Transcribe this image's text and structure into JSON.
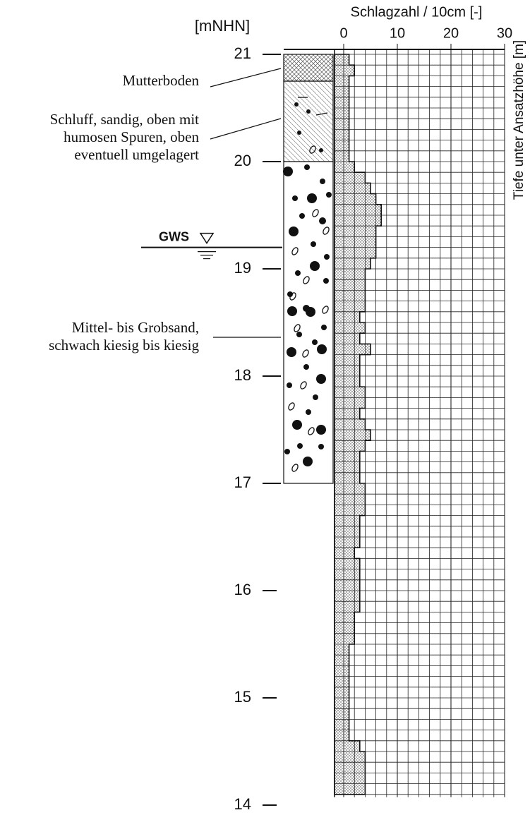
{
  "chart_data": {
    "type": "step-histogram",
    "y_axis_label": "[mNHN]",
    "x_axis_label": "Schlagzahl / 10cm [-]",
    "y2_axis_label": "Tiefe unter Ansatzhöhe [m]",
    "xlim": [
      0,
      30
    ],
    "xticks": [
      0,
      10,
      20,
      30
    ],
    "ylim": [
      14,
      21
    ],
    "yticks": [
      14,
      15,
      16,
      17,
      18,
      19,
      20,
      21
    ],
    "bins": [
      21.0,
      20.9,
      20.8,
      20.7,
      20.6,
      20.5,
      20.4,
      20.3,
      20.2,
      20.1,
      20.0,
      19.9,
      19.8,
      19.7,
      19.6,
      19.5,
      19.4,
      19.3,
      19.2,
      19.1,
      19.0,
      18.9,
      18.8,
      18.7,
      18.6,
      18.5,
      18.4,
      18.3,
      18.2,
      18.1,
      18.0,
      17.9,
      17.8,
      17.7,
      17.6,
      17.5,
      17.4,
      17.3,
      17.2,
      17.1,
      17.0,
      16.9,
      16.8,
      16.7,
      16.6,
      16.5,
      16.4,
      16.3,
      16.2,
      16.1,
      16.0,
      15.9,
      15.8,
      15.7,
      15.6,
      15.5,
      15.4,
      15.3,
      15.2,
      15.1,
      15.0,
      14.9,
      14.8,
      14.7,
      14.6,
      14.5,
      14.4,
      14.3,
      14.2,
      14.1
    ],
    "values": [
      1,
      2,
      1,
      1,
      1,
      1,
      1,
      1,
      1,
      1,
      2,
      4,
      5,
      6,
      7,
      7,
      6,
      6,
      6,
      5,
      4,
      4,
      4,
      4,
      3,
      4,
      3,
      5,
      3,
      3,
      3,
      4,
      4,
      3,
      4,
      5,
      4,
      3,
      3,
      3,
      4,
      4,
      4,
      3,
      3,
      3,
      2,
      3,
      3,
      3,
      3,
      3,
      2,
      2,
      2,
      1,
      1,
      1,
      1,
      1,
      1,
      1,
      1,
      1,
      3,
      4,
      4,
      4,
      4
    ],
    "layers": [
      {
        "label": [
          "Mutterboden"
        ],
        "top": 21.0,
        "bottom": 20.75
      },
      {
        "label": [
          "Schluff, sandig, oben mit",
          "humosen Spuren, oben",
          "eventuell umgelagert"
        ],
        "top": 20.75,
        "bottom": 20.0
      },
      {
        "label": [
          "Mittel- bis Grobsand,",
          "schwach kiesig bis kiesig"
        ],
        "top": 20.0,
        "bottom": 17.0
      }
    ],
    "groundwater": {
      "label": "GWS",
      "elevation": 19.2
    }
  }
}
